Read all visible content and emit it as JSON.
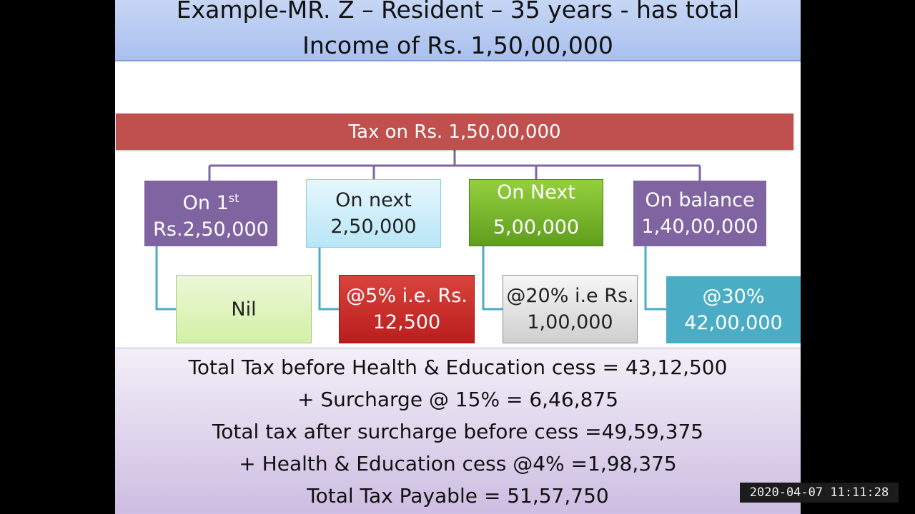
{
  "title": {
    "line1": "Example-MR. Z – Resident – 35 years -  has total",
    "line2": "Income of Rs. 1,50,00,000"
  },
  "diagram": {
    "header": "Tax on Rs. 1,50,00,000",
    "slabs": [
      {
        "label_line1": "On 1",
        "label_sup": "st",
        "label_line2": "Rs.2,50,000",
        "tax_line1": "Nil",
        "tax_line2": ""
      },
      {
        "label_line1": "On next",
        "label_sup": "",
        "label_line2": "2,50,000",
        "tax_line1": "@5% i.e. Rs.",
        "tax_line2": "12,500"
      },
      {
        "label_line1": "On Next",
        "label_sup": "",
        "label_line2": "5,00,000",
        "tax_line1": "@20% i.e Rs.",
        "tax_line2": "1,00,000"
      },
      {
        "label_line1": "On balance",
        "label_sup": "",
        "label_line2": "1,40,00,000",
        "tax_line1": "@30%",
        "tax_line2": "42,00,000"
      }
    ]
  },
  "summary": [
    "Total Tax  before Health & Education cess = 43,12,500",
    "+ Surcharge @ 15% = 6,46,875",
    "Total tax after surcharge before cess =49,59,375",
    "+ Health & Education cess @4% =1,98,375",
    "Total Tax Payable = 51,57,750"
  ],
  "timestamp": "2020-04-07  11:11:28",
  "colors": {
    "header": "#c0504d",
    "purple_box": "#8064a2",
    "green_box": "#6aaa2a",
    "red_box": "#c0302c",
    "teal_box": "#4bacc6"
  }
}
